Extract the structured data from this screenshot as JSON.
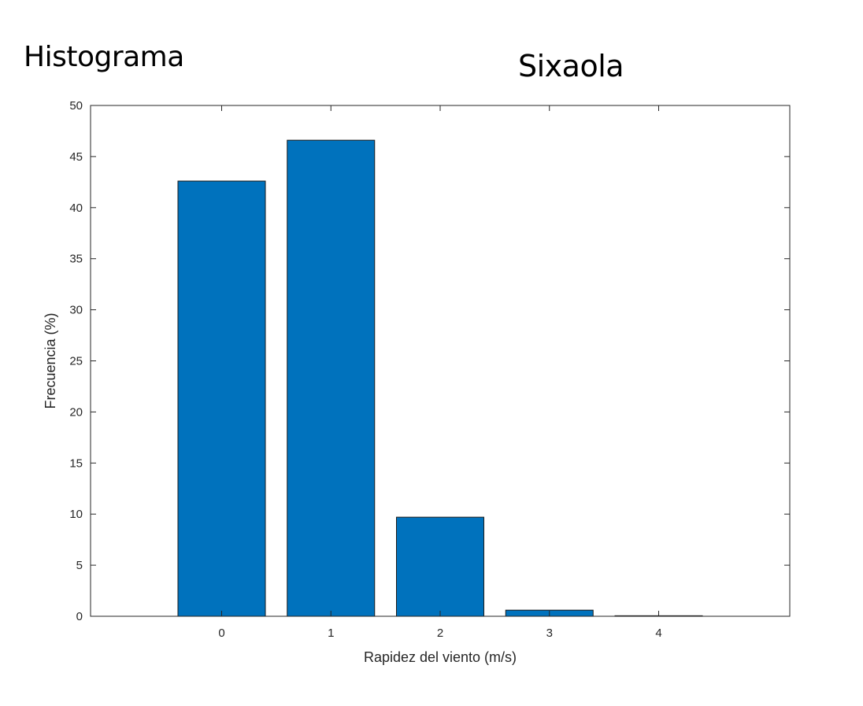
{
  "headings": {
    "left": "Histograma",
    "right": "Sixaola"
  },
  "chart_data": {
    "type": "bar",
    "categories": [
      "0",
      "1",
      "2",
      "3",
      "4"
    ],
    "values": [
      42.6,
      46.6,
      9.7,
      0.6,
      0.05
    ],
    "title": "",
    "xlabel": "Rapidez del viento (m/s)",
    "ylabel": "Frecuencia (%)",
    "xlim": [
      -1.2,
      5.2
    ],
    "ylim": [
      0,
      50
    ],
    "yticks": [
      0,
      5,
      10,
      15,
      20,
      25,
      30,
      35,
      40,
      45,
      50
    ],
    "xticks": [
      0,
      1,
      2,
      3,
      4
    ],
    "grid": false,
    "bar_color": "#0072BD",
    "edge_color": "#1a1a1a"
  }
}
